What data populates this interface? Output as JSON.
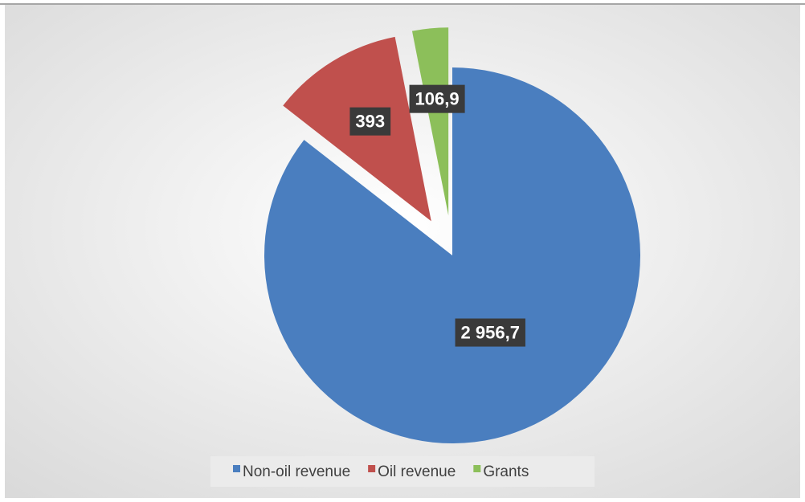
{
  "chart_data": {
    "type": "pie",
    "categories": [
      "Non-oil revenue",
      "Oil revenue",
      "Grants"
    ],
    "values": [
      2956.7,
      393,
      106.9
    ],
    "value_labels": [
      "2 956,7",
      "393",
      "106,9"
    ],
    "colors": [
      "#4a7ebf",
      "#c0504d",
      "#8cbf5a"
    ],
    "exploded": [
      false,
      true,
      true
    ],
    "legend": "bottom"
  }
}
